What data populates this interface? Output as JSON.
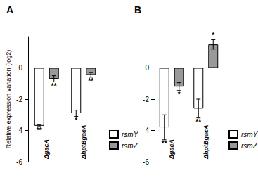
{
  "chart_data": [
    {
      "type": "bar",
      "title": "A",
      "ylabel": "Relative expression variation (log2)",
      "categories": [
        "ΔgacA",
        "ΔhptBgacA"
      ],
      "series": [
        {
          "name": "rsmY",
          "color": "#ffffff",
          "values": [
            -3.7,
            -2.9
          ],
          "errors": [
            0.05,
            0.2
          ],
          "significance": [
            "**",
            "*"
          ]
        },
        {
          "name": "rsmZ",
          "color": "#999999",
          "values": [
            -0.7,
            -0.45
          ],
          "errors": [
            0.2,
            0.15
          ],
          "significance": [
            "**",
            "**"
          ]
        }
      ],
      "ylim": [
        -6,
        2
      ],
      "yticks": [
        -6,
        -4,
        -2,
        0
      ],
      "grid": false,
      "legend": "lower right"
    },
    {
      "type": "bar",
      "title": "B",
      "categories": [
        "ΔgacA",
        "ΔhptBgacA"
      ],
      "series": [
        {
          "name": "rsmY",
          "color": "#ffffff",
          "values": [
            -3.8,
            -2.6
          ],
          "errors": [
            0.8,
            0.6
          ],
          "significance": [
            "**",
            "**"
          ]
        },
        {
          "name": "rsmZ",
          "color": "#999999",
          "values": [
            -1.2,
            1.5
          ],
          "errors": [
            0.25,
            0.3
          ],
          "significance": [
            "*",
            "*"
          ]
        }
      ],
      "ylim": [
        -6,
        2
      ],
      "yticks": [
        -6,
        -4,
        -2,
        0
      ],
      "grid": false,
      "legend": "lower right"
    }
  ]
}
